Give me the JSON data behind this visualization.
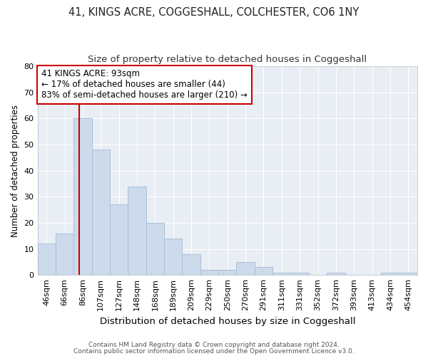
{
  "title": "41, KINGS ACRE, COGGESHALL, COLCHESTER, CO6 1NY",
  "subtitle": "Size of property relative to detached houses in Coggeshall",
  "xlabel": "Distribution of detached houses by size in Coggeshall",
  "ylabel": "Number of detached properties",
  "categories": [
    "46sqm",
    "66sqm",
    "86sqm",
    "107sqm",
    "127sqm",
    "148sqm",
    "168sqm",
    "189sqm",
    "209sqm",
    "229sqm",
    "250sqm",
    "270sqm",
    "291sqm",
    "311sqm",
    "331sqm",
    "352sqm",
    "372sqm",
    "393sqm",
    "413sqm",
    "434sqm",
    "454sqm"
  ],
  "values": [
    12,
    16,
    60,
    48,
    27,
    34,
    20,
    14,
    8,
    2,
    2,
    5,
    3,
    1,
    1,
    0,
    1,
    0,
    0,
    1,
    1
  ],
  "bar_color": "#ccdaeb",
  "bar_edge_color": "#aabfd8",
  "red_line_color": "#cc0000",
  "annotation_line1": "41 KINGS ACRE: 93sqm",
  "annotation_line2": "← 17% of detached houses are smaller (44)",
  "annotation_line3": "83% of semi-detached houses are larger (210) →",
  "annotation_box_color": "#ffffff",
  "annotation_box_edge": "#cc0000",
  "ylim": [
    0,
    80
  ],
  "yticks": [
    0,
    10,
    20,
    30,
    40,
    50,
    60,
    70,
    80
  ],
  "background_color": "#e8eef4",
  "footnote1": "Contains HM Land Registry data © Crown copyright and database right 2024.",
  "footnote2": "Contains public sector information licensed under the Open Government Licence v3.0.",
  "title_fontsize": 10.5,
  "subtitle_fontsize": 9.5,
  "xlabel_fontsize": 9.5,
  "ylabel_fontsize": 8.5,
  "tick_fontsize": 8,
  "annotation_fontsize": 8.5,
  "footnote_fontsize": 6.5
}
